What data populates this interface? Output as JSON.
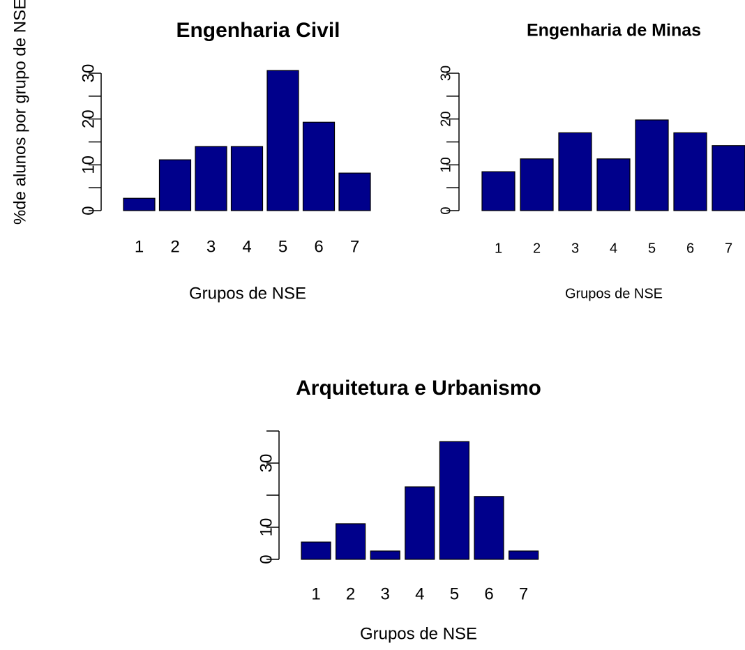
{
  "chart_data": [
    {
      "type": "bar",
      "title": "Engenharia Civil",
      "xlabel": "Grupos de NSE",
      "ylabel": "%de alunos por grupo de NSE",
      "categories": [
        "1",
        "2",
        "3",
        "4",
        "5",
        "6",
        "7"
      ],
      "values": [
        2.7,
        11.1,
        14.0,
        14.0,
        30.6,
        19.3,
        8.2
      ],
      "color": "#00008b",
      "ylim": [
        0,
        30
      ],
      "yticks": [
        0,
        10,
        20,
        30
      ],
      "yminor_ticks": [
        5,
        15,
        25
      ]
    },
    {
      "type": "bar",
      "title": "Engenharia de Minas",
      "xlabel": "Grupos de NSE",
      "categories": [
        "1",
        "2",
        "3",
        "4",
        "5",
        "6",
        "7"
      ],
      "values": [
        8.5,
        11.3,
        17.0,
        11.3,
        19.8,
        17.0,
        14.2
      ],
      "color": "#00008b",
      "ylim": [
        0,
        30
      ],
      "yticks": [
        0,
        10,
        20,
        30
      ],
      "yminor_ticks": [
        5,
        15,
        25
      ]
    },
    {
      "type": "bar",
      "title": "Arquitetura e Urbanismo",
      "xlabel": "Grupos de NSE",
      "categories": [
        "1",
        "2",
        "3",
        "4",
        "5",
        "6",
        "7"
      ],
      "values": [
        5.4,
        11.1,
        2.6,
        22.6,
        36.7,
        19.6,
        2.6
      ],
      "color": "#00008b",
      "ylim": [
        0,
        40
      ],
      "yticks": [
        0,
        10,
        30
      ],
      "yminor_ticks": [
        20,
        40
      ]
    }
  ]
}
